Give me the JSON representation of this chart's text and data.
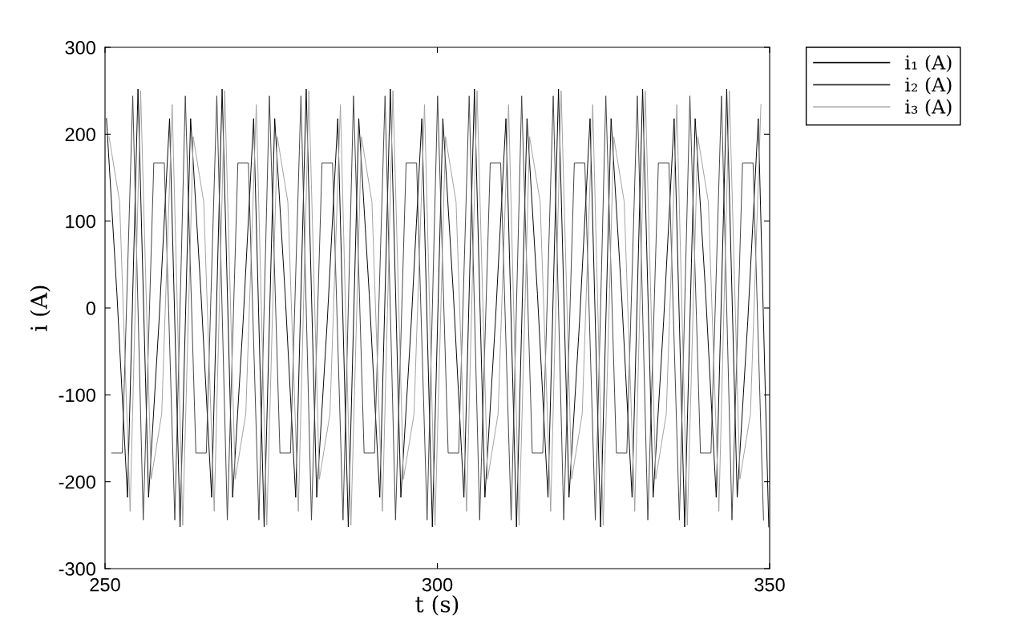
{
  "chart_data": {
    "type": "line",
    "xlabel": "t (s)",
    "ylabel": "i (A)",
    "xlim": [
      250,
      350
    ],
    "xticks": [
      250,
      300,
      350
    ],
    "ylim": [
      -300,
      300
    ],
    "yticks": [
      -300,
      -200,
      -100,
      0,
      100,
      200,
      300
    ],
    "grid": false,
    "legend": "top right",
    "marker": "none",
    "line_style": "solid",
    "series": [
      {
        "name": "i₁ (A)",
        "color": "#000000",
        "x": [
          250.22,
          251.8,
          253.38,
          254.96,
          256.55,
          258.13,
          259.71,
          261.29,
          262.88,
          264.45,
          266.04,
          267.62,
          269.2,
          270.78,
          272.36,
          273.94,
          275.53,
          277.11,
          278.69,
          280.27,
          281.85,
          283.44,
          285.02,
          286.6,
          288.18,
          289.76,
          291.34,
          292.93,
          294.51,
          296.09,
          297.67,
          299.25,
          300.83,
          302.42,
          304.0,
          305.58,
          307.16,
          308.74,
          310.32,
          311.91,
          313.49,
          315.07,
          316.65,
          318.23,
          319.81,
          321.4,
          322.98,
          324.56,
          326.14,
          327.72,
          329.3,
          330.89,
          332.47,
          334.05,
          335.63,
          337.21,
          338.79,
          340.38,
          341.96,
          343.54,
          345.12,
          346.71,
          348.29,
          349.87
        ],
        "values": [
          218,
          15,
          -218,
          252,
          -218,
          -15,
          218,
          -252,
          218,
          15,
          -218,
          252,
          -218,
          -15,
          218,
          -252,
          218,
          15,
          -218,
          252,
          -218,
          -15,
          218,
          -252,
          218,
          15,
          -218,
          252,
          -218,
          -15,
          218,
          -252,
          218,
          15,
          -218,
          252,
          -218,
          -15,
          218,
          -252,
          218,
          15,
          -218,
          252,
          -218,
          -15,
          218,
          -252,
          218,
          15,
          -218,
          252,
          -218,
          -15,
          218,
          -252,
          218,
          15,
          -218,
          252,
          -218,
          -15,
          218,
          -252
        ]
      },
      {
        "name": "i₂ (A)",
        "color": "#404040",
        "x": [
          251.01,
          252.59,
          254.17,
          255.75,
          257.34,
          258.92,
          260.5,
          262.08,
          263.67,
          265.24,
          266.82,
          268.4,
          269.99,
          271.57,
          273.15,
          274.73,
          276.32,
          277.9,
          279.48,
          281.06,
          282.65,
          284.23,
          285.81,
          287.39,
          288.98,
          290.55,
          292.13,
          293.71,
          295.3,
          296.88,
          298.46,
          300.04,
          301.63,
          303.21,
          304.79,
          306.37,
          307.96,
          309.53,
          311.11,
          312.69,
          314.28,
          315.86,
          317.44,
          319.02,
          320.61,
          322.19,
          323.77,
          325.35,
          326.94,
          328.51,
          330.09,
          331.67,
          333.26,
          334.84,
          336.42,
          338.0,
          339.59,
          341.17,
          342.75,
          344.33,
          345.92,
          347.5,
          349.08
        ],
        "values": [
          -167,
          -167,
          244,
          -244,
          167,
          167,
          -244,
          244,
          -167,
          -167,
          244,
          -244,
          167,
          167,
          -244,
          244,
          -167,
          -167,
          244,
          -244,
          167,
          167,
          -244,
          244,
          -167,
          -167,
          244,
          -244,
          167,
          167,
          -244,
          244,
          -167,
          -167,
          244,
          -244,
          167,
          167,
          -244,
          244,
          -167,
          -167,
          244,
          -244,
          167,
          167,
          -244,
          244,
          -167,
          -167,
          244,
          -244,
          167,
          167,
          -244,
          244,
          -167,
          -167,
          244,
          -244,
          167,
          167,
          -244
        ]
      },
      {
        "name": "i₃ (A)",
        "color": "#a0a0a0",
        "x": [
          250.61,
          252.2,
          253.78,
          255.36,
          256.94,
          258.53,
          260.11,
          261.69,
          263.27,
          264.85,
          266.43,
          268.01,
          269.59,
          271.18,
          272.76,
          274.34,
          275.92,
          277.51,
          279.09,
          280.67,
          282.25,
          283.84,
          285.42,
          287.0,
          288.58,
          290.16,
          291.74,
          293.32,
          294.9,
          296.49,
          298.07,
          299.65,
          301.23,
          302.82,
          304.4,
          305.98,
          307.56,
          309.14,
          310.72,
          312.3,
          313.88,
          315.47,
          317.05,
          318.63,
          320.21,
          321.8,
          323.38,
          324.96,
          326.54,
          328.12,
          329.7,
          331.28,
          332.86,
          334.45,
          336.03,
          337.61,
          339.19,
          340.78,
          342.36,
          343.94,
          345.52,
          347.11,
          348.69
        ],
        "values": [
          197,
          122,
          -234,
          250,
          -197,
          -122,
          234,
          -250,
          197,
          122,
          -234,
          250,
          -197,
          -122,
          234,
          -250,
          197,
          122,
          -234,
          250,
          -197,
          -122,
          234,
          -250,
          197,
          122,
          -234,
          250,
          -197,
          -122,
          234,
          -250,
          197,
          122,
          -234,
          250,
          -197,
          -122,
          234,
          -250,
          197,
          122,
          -234,
          250,
          -197,
          -122,
          234,
          -250,
          197,
          122,
          -234,
          250,
          -197,
          -122,
          234,
          -250,
          197,
          122,
          -234,
          250,
          -197,
          -122,
          234
        ]
      }
    ]
  }
}
